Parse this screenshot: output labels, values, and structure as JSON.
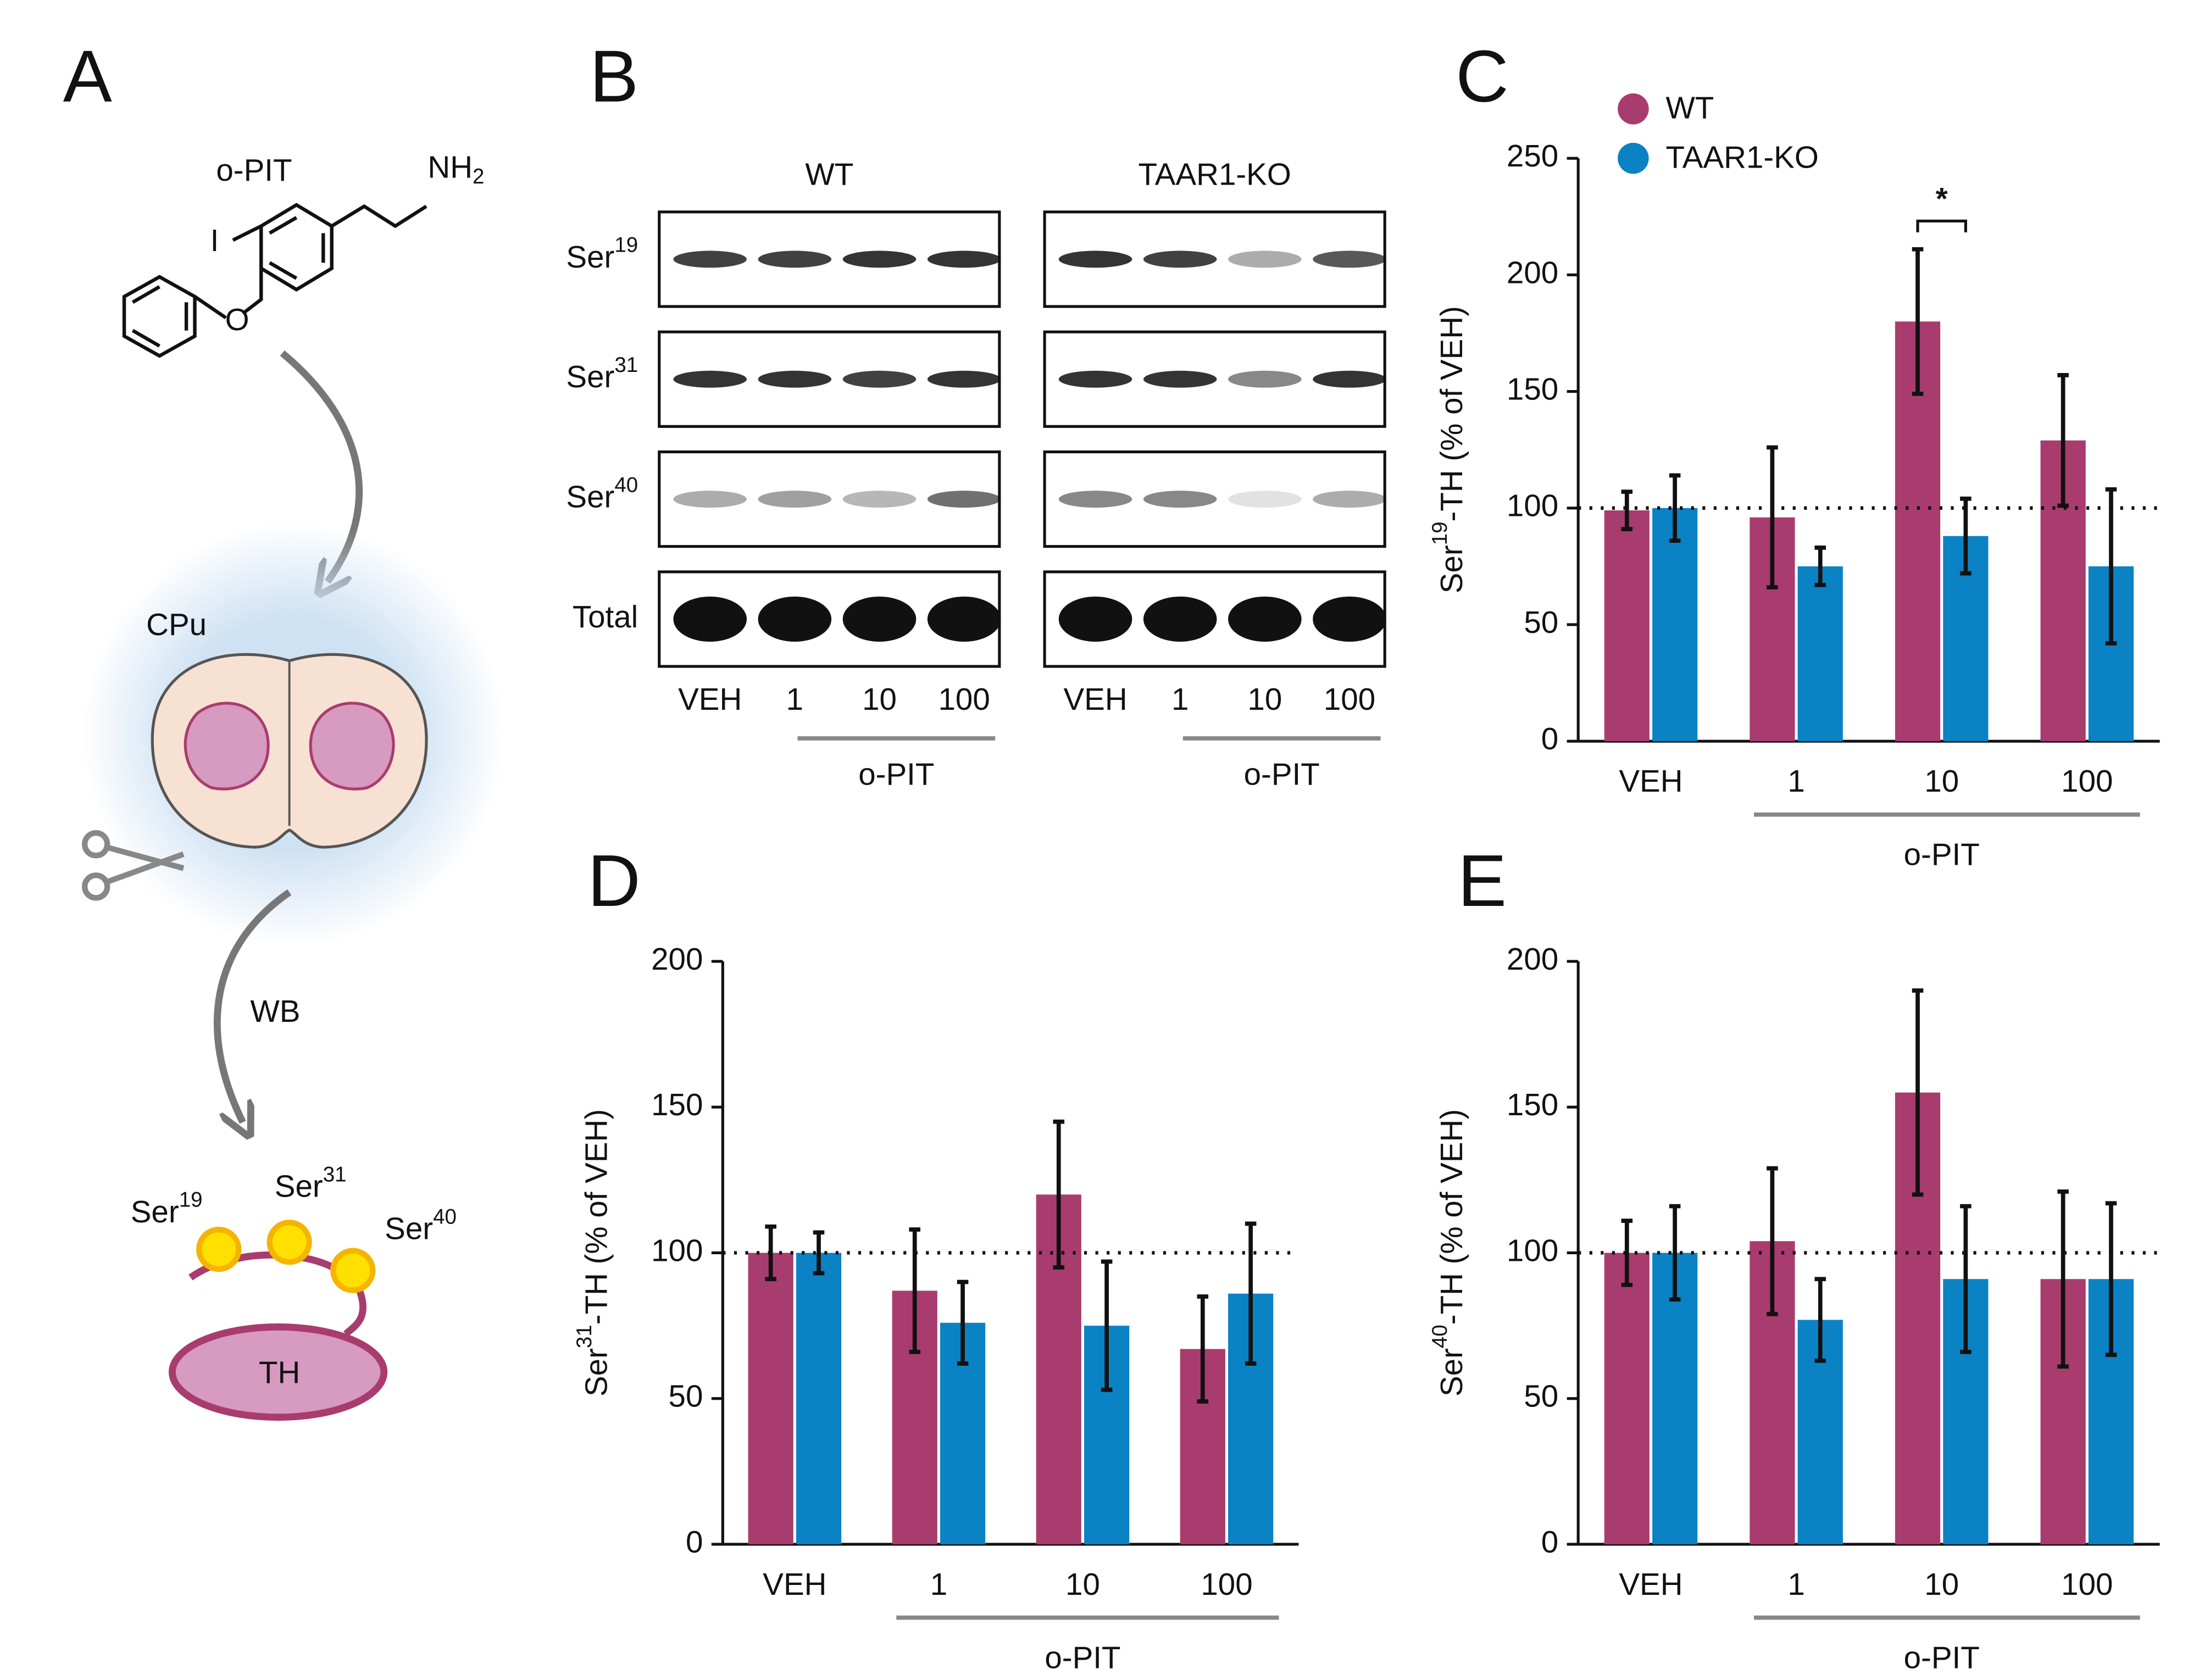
{
  "panel_labels": [
    "A",
    "B",
    "C",
    "D",
    "E"
  ],
  "scheme": {
    "compound": "o-PIT",
    "amine": {
      "text": "NH",
      "sub": "2"
    },
    "iodine": "I",
    "oxygen": "O",
    "region": "CPu",
    "method": "WB",
    "sites": [
      {
        "text": "Ser",
        "sup": "19"
      },
      {
        "text": "Ser",
        "sup": "31"
      },
      {
        "text": "Ser",
        "sup": "40"
      }
    ],
    "protein": "TH"
  },
  "blot": {
    "groups": [
      "WT",
      "TAAR1-KO"
    ],
    "rows": [
      {
        "text": "Ser",
        "sup": "19"
      },
      {
        "text": "Ser",
        "sup": "31"
      },
      {
        "text": "Ser",
        "sup": "40"
      },
      {
        "text": "Total"
      }
    ],
    "lanes": [
      "VEH",
      "1",
      "10",
      "100"
    ],
    "treatment": "o-PIT"
  },
  "chart_data": [
    {
      "type": "bar",
      "label": "C",
      "ylabel": {
        "text": "Ser",
        "sup": "19",
        "rest": "-TH (% of VEH)"
      },
      "categories": [
        "VEH",
        "1",
        "10",
        "100"
      ],
      "group_label": "o-PIT",
      "series": [
        {
          "name": "WT",
          "color": "#a93c6e",
          "values": [
            99,
            96,
            180,
            129
          ],
          "errors": [
            8,
            30,
            31,
            28
          ]
        },
        {
          "name": "TAAR1-KO",
          "color": "#0a82c4",
          "values": [
            100,
            75,
            88,
            75
          ],
          "errors": [
            14,
            8,
            16,
            33
          ]
        }
      ],
      "ylim": [
        0,
        250
      ],
      "yticks": [
        0,
        50,
        100,
        150,
        200,
        250
      ],
      "reference_line": 100,
      "legend": "top",
      "annotations": [
        {
          "text": "*",
          "category": "10"
        }
      ]
    },
    {
      "type": "bar",
      "label": "D",
      "ylabel": {
        "text": "Ser",
        "sup": "31",
        "rest": "-TH (% of VEH)"
      },
      "categories": [
        "VEH",
        "1",
        "10",
        "100"
      ],
      "group_label": "o-PIT",
      "series": [
        {
          "name": "WT",
          "color": "#a93c6e",
          "values": [
            100,
            87,
            120,
            67
          ],
          "errors": [
            9,
            21,
            25,
            18
          ]
        },
        {
          "name": "TAAR1-KO",
          "color": "#0a82c4",
          "values": [
            100,
            76,
            75,
            86
          ],
          "errors": [
            7,
            14,
            22,
            24
          ]
        }
      ],
      "ylim": [
        0,
        200
      ],
      "yticks": [
        0,
        50,
        100,
        150,
        200
      ],
      "reference_line": 100
    },
    {
      "type": "bar",
      "label": "E",
      "ylabel": {
        "text": "Ser",
        "sup": "40",
        "rest": "-TH (% of VEH)"
      },
      "categories": [
        "VEH",
        "1",
        "10",
        "100"
      ],
      "group_label": "o-PIT",
      "series": [
        {
          "name": "WT",
          "color": "#a93c6e",
          "values": [
            100,
            104,
            155,
            91
          ],
          "errors": [
            11,
            25,
            35,
            30
          ]
        },
        {
          "name": "TAAR1-KO",
          "color": "#0a82c4",
          "values": [
            100,
            77,
            91,
            91
          ],
          "errors": [
            16,
            14,
            25,
            26
          ]
        }
      ],
      "ylim": [
        0,
        200
      ],
      "yticks": [
        0,
        50,
        100,
        150,
        200
      ],
      "reference_line": 100
    }
  ]
}
